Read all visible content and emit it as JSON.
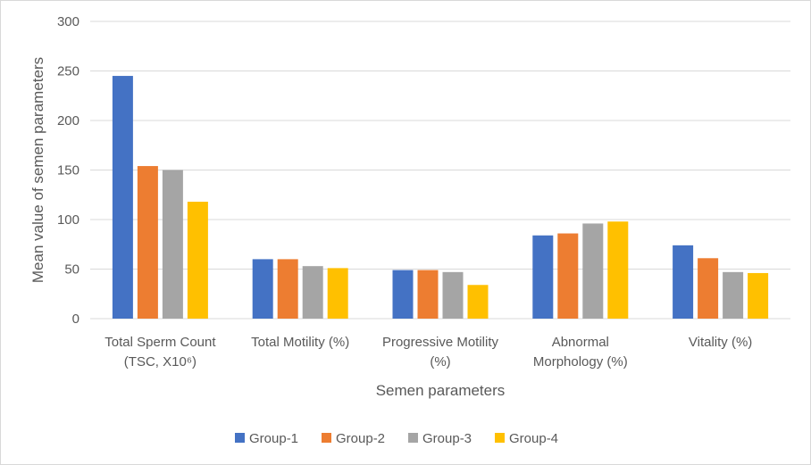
{
  "chart_data": {
    "type": "bar",
    "title": "",
    "xlabel": "Semen parameters",
    "ylabel": "Mean value of semen parameters",
    "ylim": [
      0,
      300
    ],
    "yticks": [
      "0",
      "50",
      "100",
      "150",
      "200",
      "250",
      "300"
    ],
    "grid": true,
    "legend_position": "bottom",
    "categories": [
      [
        "Total Sperm Count",
        "(TSC, X10⁶)"
      ],
      [
        "Total Motility (%)"
      ],
      [
        "Progressive Motility",
        "(%)"
      ],
      [
        "Abnormal",
        "Morphology (%)"
      ],
      [
        "Vitality (%)"
      ]
    ],
    "series": [
      {
        "name": "Group-1",
        "color": "#4472C4",
        "values": [
          245,
          60,
          49,
          84,
          74
        ]
      },
      {
        "name": "Group-2",
        "color": "#ED7D31",
        "values": [
          154,
          60,
          49,
          86,
          61
        ]
      },
      {
        "name": "Group-3",
        "color": "#A5A5A5",
        "values": [
          150,
          53,
          47,
          96,
          47
        ]
      },
      {
        "name": "Group-4",
        "color": "#FFC000",
        "values": [
          118,
          51,
          34,
          98,
          46
        ]
      }
    ]
  }
}
